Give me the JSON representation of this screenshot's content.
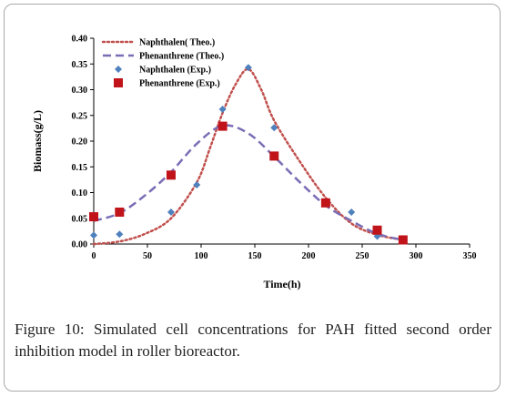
{
  "chart_data": {
    "type": "line",
    "xlabel": "Time(h)",
    "ylabel": "Biomass(g/L)",
    "xlim": [
      0,
      350
    ],
    "ylim": [
      0,
      0.4
    ],
    "xticks": [
      "0",
      "50",
      "100",
      "150",
      "200",
      "250",
      "300",
      "350"
    ],
    "yticks": [
      "0.00",
      "0.05",
      "0.10",
      "0.15",
      "0.20",
      "0.25",
      "0.30",
      "0.35",
      "0.40"
    ],
    "grid": false,
    "legend_position": "top-left",
    "series": [
      {
        "name": "Naphthalen( Theo.)",
        "kind": "line",
        "style": "dotted",
        "color": "#c0504d",
        "x": [
          0,
          24,
          48,
          72,
          96,
          108,
          120,
          132,
          144,
          156,
          168,
          192,
          216,
          240,
          264,
          288
        ],
        "y": [
          0.0,
          0.005,
          0.02,
          0.05,
          0.12,
          0.185,
          0.255,
          0.31,
          0.34,
          0.3,
          0.24,
          0.16,
          0.09,
          0.04,
          0.018,
          0.008
        ]
      },
      {
        "name": "Phenanthrene (Theo.)",
        "kind": "line",
        "style": "dashed",
        "color": "#7b6db5",
        "x": [
          0,
          24,
          48,
          72,
          96,
          120,
          144,
          168,
          192,
          216,
          240,
          264,
          288
        ],
        "y": [
          0.045,
          0.06,
          0.095,
          0.14,
          0.195,
          0.23,
          0.215,
          0.17,
          0.12,
          0.075,
          0.045,
          0.02,
          0.008
        ]
      },
      {
        "name": "Naphthalen (Exp.)",
        "kind": "scatter",
        "marker": "diamond",
        "color": "#4f81bd",
        "x": [
          0,
          24,
          72,
          96,
          120,
          144,
          168,
          216,
          240,
          264
        ],
        "y": [
          0.017,
          0.019,
          0.062,
          0.115,
          0.262,
          0.343,
          0.226,
          0.08,
          0.062,
          0.015
        ]
      },
      {
        "name": "Phenanthrene (Exp.)",
        "kind": "scatter",
        "marker": "square",
        "color": "#c0141a",
        "x": [
          0,
          24,
          72,
          120,
          168,
          216,
          264,
          288
        ],
        "y": [
          0.053,
          0.062,
          0.134,
          0.229,
          0.171,
          0.08,
          0.027,
          0.008
        ]
      }
    ]
  },
  "caption": {
    "label": "Figure 10:",
    "text": " Simulated cell concentrations for PAH fitted second order inhibition model in roller bioreactor."
  }
}
